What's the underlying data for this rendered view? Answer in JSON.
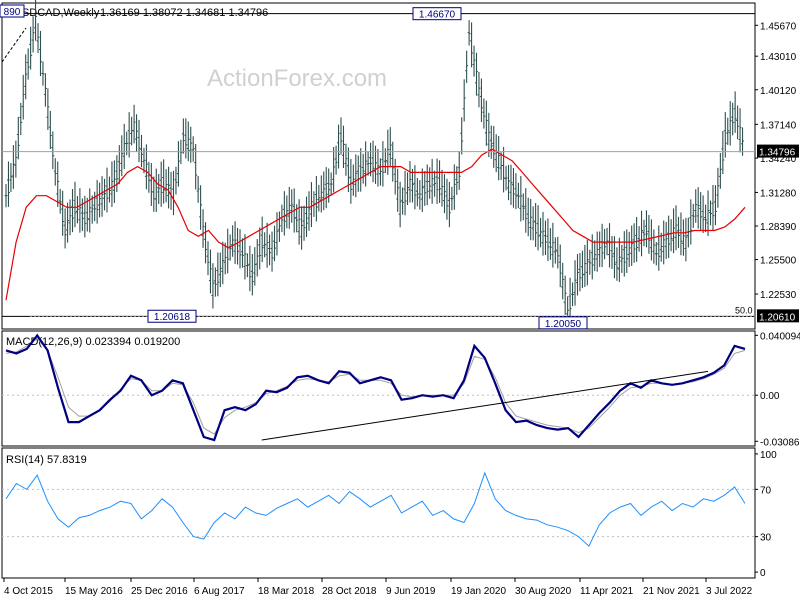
{
  "header": {
    "symbol": "USDCAD,Weekly",
    "ohlc": "1.36169 1.38072 1.34681 1.34796"
  },
  "watermark": "ActionForex.com",
  "colors": {
    "background": "#ffffff",
    "frame": "#000000",
    "grid": "#c0c0c0",
    "price_bars": "#2f4f4f",
    "sma": "#e60000",
    "macd": "#000080",
    "signal": "#a0a0a0",
    "rsi": "#1e90ff",
    "trendline": "#000000",
    "watermark": "#d0d0d0"
  },
  "chart_data": [
    {
      "type": "ohlc",
      "panel": "price",
      "title": "USDCAD,Weekly",
      "ylim": [
        1.1952,
        1.4759
      ],
      "yticks": [
        1.4567,
        1.4301,
        1.4012,
        1.3714,
        1.3424,
        1.3128,
        1.2839,
        1.255,
        1.2253
      ],
      "ytick_labels": [
        "1.45670",
        "1.43010",
        "1.40120",
        "1.37140",
        "1.34240",
        "1.31280",
        "1.28390",
        "1.25500",
        "1.22530"
      ],
      "last_price_label": "1.34796",
      "last_price": 1.34796,
      "retracement_label": "50.0",
      "retracement_value_label": "1.20610",
      "retracement_level": 1.2061,
      "annotations": [
        {
          "text": "1.46670",
          "x": "Jan 2020",
          "y": 1.4667,
          "kind": "high"
        },
        {
          "text": "1.20618",
          "x": "Aug 2017",
          "y": 1.20618,
          "kind": "low"
        },
        {
          "text": "1.20050",
          "x": "Jun 2021",
          "y": 1.2005,
          "kind": "low"
        },
        {
          "text": "890",
          "x": "Jan 2016",
          "y": 1.469,
          "kind": "high"
        }
      ],
      "series": [
        {
          "name": "",
          "role": "close",
          "values": [
            1.31,
            1.34,
            1.41,
            1.46,
            1.4,
            1.33,
            1.28,
            1.3,
            1.29,
            1.3,
            1.31,
            1.32,
            1.35,
            1.37,
            1.34,
            1.31,
            1.32,
            1.31,
            1.36,
            1.35,
            1.28,
            1.23,
            1.25,
            1.27,
            1.26,
            1.24,
            1.27,
            1.26,
            1.29,
            1.3,
            1.28,
            1.3,
            1.31,
            1.32,
            1.36,
            1.32,
            1.33,
            1.34,
            1.33,
            1.35,
            1.3,
            1.32,
            1.31,
            1.32,
            1.32,
            1.3,
            1.33,
            1.45,
            1.4,
            1.36,
            1.34,
            1.32,
            1.31,
            1.29,
            1.28,
            1.27,
            1.26,
            1.21,
            1.24,
            1.25,
            1.26,
            1.27,
            1.25,
            1.26,
            1.27,
            1.28,
            1.26,
            1.27,
            1.28,
            1.27,
            1.3,
            1.29,
            1.3,
            1.36,
            1.38,
            1.348
          ]
        },
        {
          "name": "",
          "role": "sma",
          "values": [
            1.22,
            1.27,
            1.3,
            1.31,
            1.31,
            1.305,
            1.3,
            1.3,
            1.305,
            1.31,
            1.315,
            1.32,
            1.33,
            1.335,
            1.33,
            1.32,
            1.315,
            1.3,
            1.28,
            1.275,
            1.28,
            1.27,
            1.265,
            1.27,
            1.275,
            1.28,
            1.285,
            1.29,
            1.295,
            1.3,
            1.3,
            1.305,
            1.31,
            1.315,
            1.32,
            1.325,
            1.33,
            1.335,
            1.335,
            1.335,
            1.33,
            1.33,
            1.33,
            1.33,
            1.33,
            1.33,
            1.335,
            1.345,
            1.35,
            1.345,
            1.34,
            1.33,
            1.32,
            1.31,
            1.3,
            1.29,
            1.28,
            1.275,
            1.27,
            1.27,
            1.27,
            1.27,
            1.27,
            1.272,
            1.274,
            1.276,
            1.278,
            1.278,
            1.28,
            1.28,
            1.28,
            1.283,
            1.29,
            1.3
          ]
        }
      ],
      "x_labels": [
        "4 Oct 2015",
        "15 May 2016",
        "25 Dec 2016",
        "6 Aug 2017",
        "18 Mar 2018",
        "28 Oct 2018",
        "9 Jun 2019",
        "19 Jan 2020",
        "30 Aug 2020",
        "11 Apr 2021",
        "21 Nov 2021",
        "3 Jul 2022"
      ]
    },
    {
      "type": "line",
      "panel": "macd",
      "title": "MACD(12,26,9) 0.023394 0.019200",
      "ylim": [
        -0.034,
        0.043
      ],
      "yticks": [
        0.040094,
        0.0,
        -0.03086
      ],
      "ytick_labels": [
        "0.040094",
        "0.00",
        "-0.03086"
      ],
      "series": [
        {
          "name": "",
          "role": "macd",
          "values": [
            0.03,
            0.028,
            0.031,
            0.04,
            0.03,
            0.005,
            -0.018,
            -0.018,
            -0.014,
            -0.01,
            -0.003,
            0.003,
            0.013,
            0.01,
            0.0,
            0.003,
            0.01,
            0.008,
            -0.01,
            -0.028,
            -0.03,
            -0.01,
            -0.008,
            -0.01,
            -0.006,
            0.003,
            0.002,
            0.005,
            0.012,
            0.013,
            0.01,
            0.008,
            0.016,
            0.015,
            0.008,
            0.01,
            0.012,
            0.01,
            -0.003,
            -0.002,
            0.0,
            -0.001,
            0.0,
            -0.002,
            0.01,
            0.033,
            0.025,
            0.008,
            -0.01,
            -0.018,
            -0.017,
            -0.02,
            -0.022,
            -0.023,
            -0.022,
            -0.028,
            -0.02,
            -0.012,
            -0.005,
            0.003,
            0.008,
            0.005,
            0.01,
            0.008,
            0.007,
            0.008,
            0.01,
            0.012,
            0.015,
            0.02,
            0.033,
            0.031
          ]
        },
        {
          "name": "",
          "role": "signal",
          "values": [
            0.028,
            0.029,
            0.033,
            0.038,
            0.03,
            0.012,
            -0.008,
            -0.014,
            -0.014,
            -0.01,
            -0.004,
            0.004,
            0.011,
            0.01,
            0.003,
            0.003,
            0.008,
            0.007,
            -0.005,
            -0.022,
            -0.026,
            -0.015,
            -0.01,
            -0.008,
            -0.005,
            0.001,
            0.003,
            0.006,
            0.01,
            0.011,
            0.01,
            0.009,
            0.013,
            0.014,
            0.01,
            0.01,
            0.01,
            0.008,
            0.0,
            -0.001,
            0.0,
            0.0,
            0.0,
            0.0,
            0.008,
            0.026,
            0.024,
            0.012,
            -0.005,
            -0.014,
            -0.016,
            -0.018,
            -0.02,
            -0.021,
            -0.022,
            -0.025,
            -0.022,
            -0.015,
            -0.008,
            0.0,
            0.005,
            0.006,
            0.008,
            0.008,
            0.007,
            0.008,
            0.009,
            0.011,
            0.014,
            0.018,
            0.028,
            0.03
          ]
        }
      ],
      "trendline": {
        "from": [
          0.3605,
          -0.03
        ],
        "to": [
          0.95,
          0.016
        ]
      }
    },
    {
      "type": "line",
      "panel": "rsi",
      "title": "RSI(14) 57.8319",
      "ylim": [
        -5,
        105
      ],
      "yticks": [
        100,
        70,
        30,
        0
      ],
      "ytick_labels": [
        "100",
        "70",
        "30",
        "0"
      ],
      "series": [
        {
          "name": "",
          "role": "rsi",
          "values": [
            62,
            75,
            70,
            82,
            60,
            45,
            38,
            46,
            48,
            52,
            55,
            60,
            58,
            45,
            52,
            62,
            55,
            42,
            30,
            28,
            42,
            50,
            45,
            55,
            50,
            48,
            54,
            58,
            62,
            55,
            60,
            65,
            58,
            68,
            62,
            55,
            60,
            65,
            50,
            55,
            60,
            48,
            52,
            45,
            42,
            58,
            84,
            62,
            52,
            48,
            45,
            44,
            40,
            38,
            35,
            30,
            22,
            40,
            50,
            55,
            58,
            48,
            55,
            60,
            52,
            58,
            55,
            62,
            60,
            65,
            72,
            58
          ]
        }
      ],
      "levels": [
        70,
        30
      ]
    }
  ]
}
